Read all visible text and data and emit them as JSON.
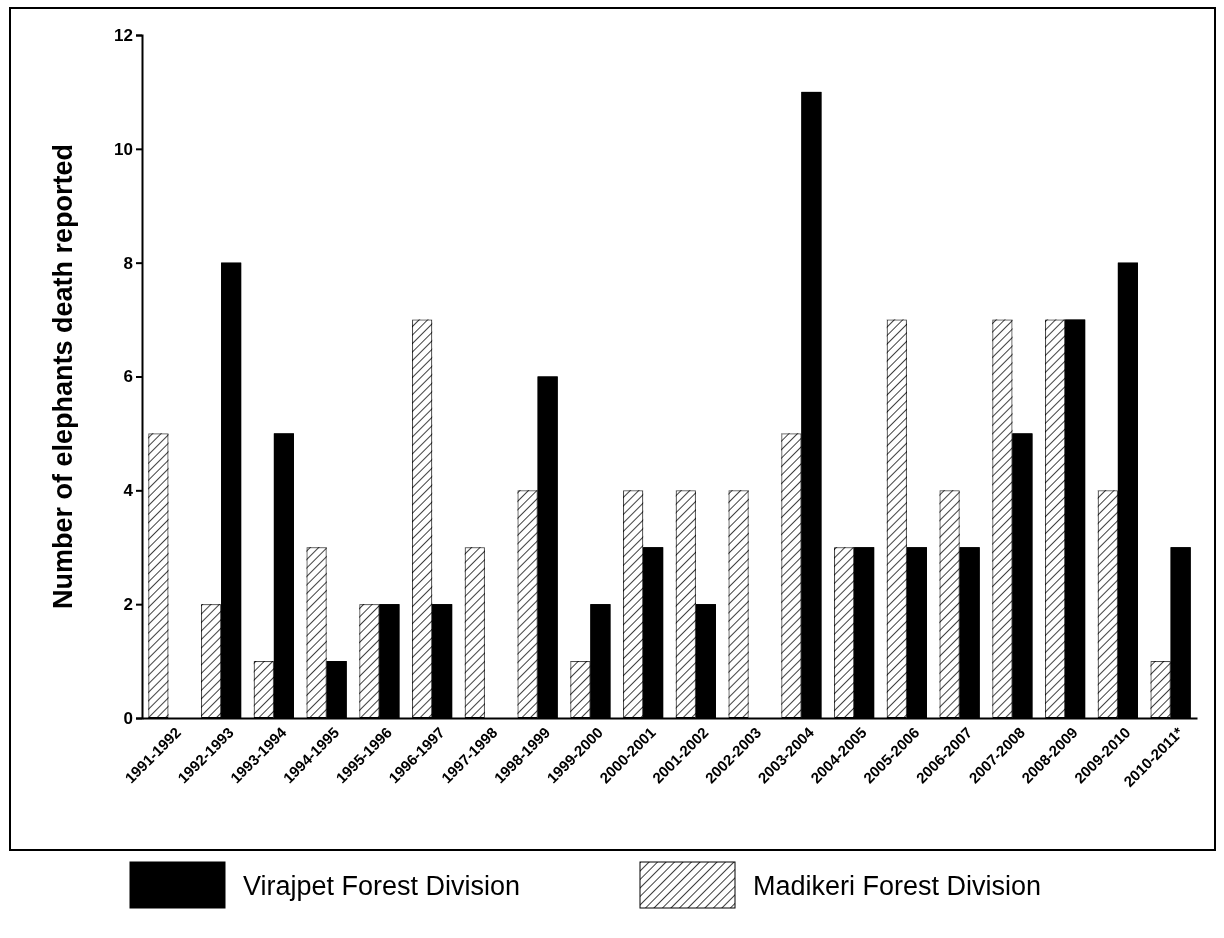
{
  "chart_data": {
    "type": "bar",
    "ylabel": "Number of elephants death reported",
    "categories": [
      "1991-1992",
      "1992-1993",
      "1993-1994",
      "1994-1995",
      "1995-1996",
      "1996-1997",
      "1997-1998",
      "1998-1999",
      "1999-2000",
      "2000-2001",
      "2001-2002",
      "2002-2003",
      "2003-2004",
      "2004-2005",
      "2005-2006",
      "2006-2007",
      "2007-2008",
      "2008-2009",
      "2009-2010",
      "2010-2011*"
    ],
    "series": [
      {
        "name": "Madikeri Forest Division",
        "color": "#ffffff",
        "values": [
          5,
          2,
          1,
          3,
          2,
          7,
          3,
          4,
          1,
          4,
          4,
          4,
          5,
          3,
          7,
          4,
          7,
          7,
          4,
          1
        ]
      },
      {
        "name": "Virajpet Forest Division",
        "color": "#000000",
        "values": [
          0,
          8,
          5,
          1,
          2,
          2,
          0,
          6,
          2,
          3,
          2,
          0,
          11,
          3,
          3,
          3,
          5,
          7,
          8,
          3
        ]
      }
    ],
    "ylim": [
      0,
      12
    ],
    "yticks": [
      0,
      2,
      4,
      6,
      8,
      10,
      12
    ],
    "grid": false,
    "legend": "bottom"
  }
}
